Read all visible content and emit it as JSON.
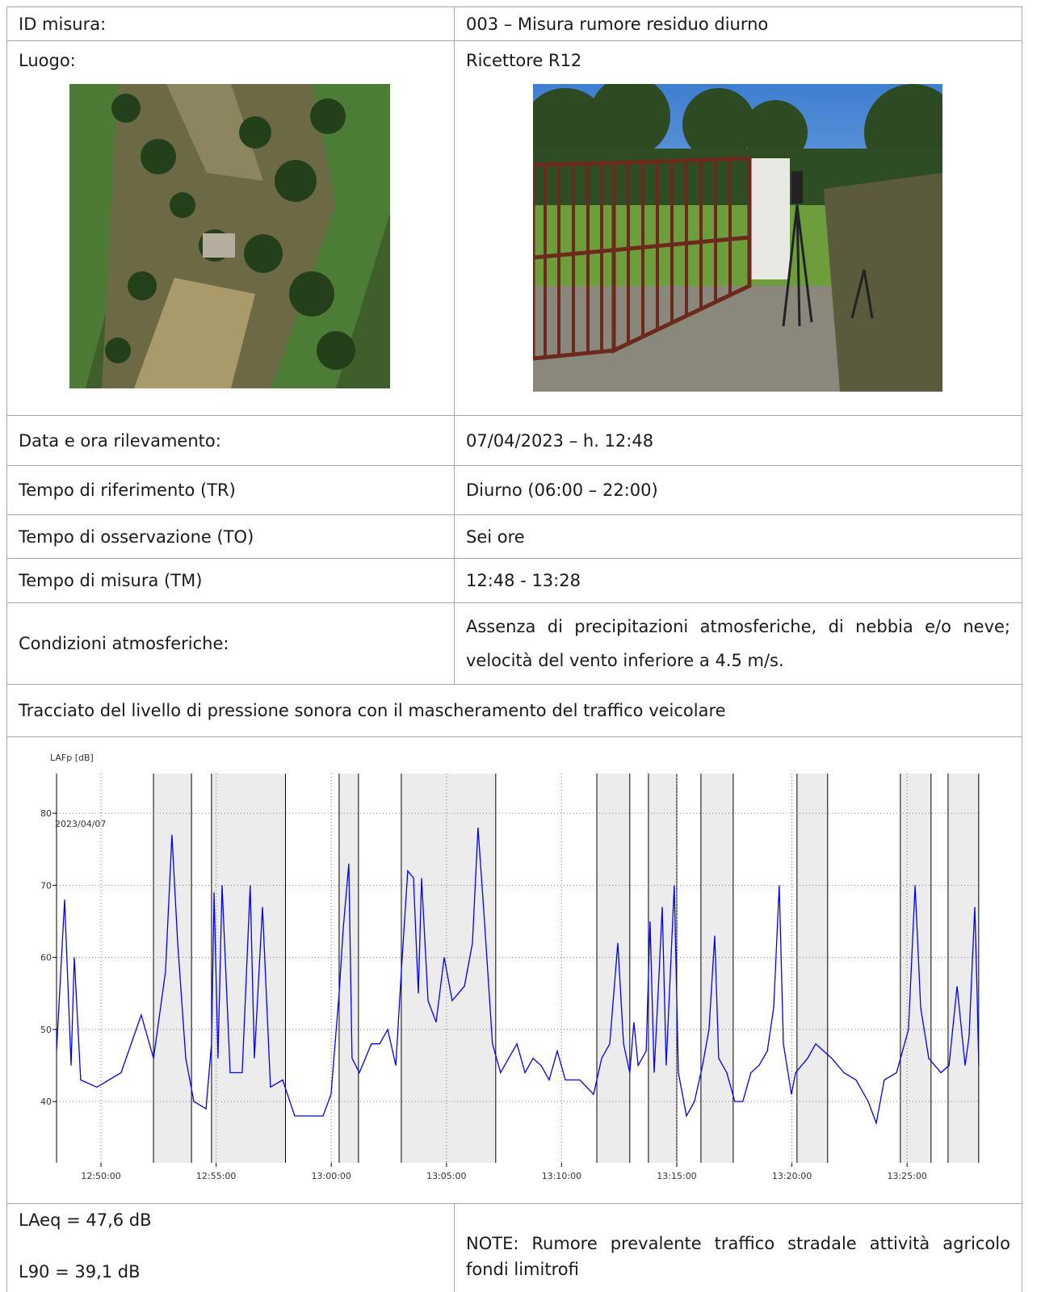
{
  "table": {
    "rows": [
      [
        "ID misura:",
        "003 – Misura rumore residuo diurno"
      ],
      [
        "Luogo:",
        "Ricettore R12"
      ],
      [
        "Data e ora rilevamento:",
        "07/04/2023 – h. 12:48"
      ],
      [
        "Tempo di riferimento (TR)",
        "Diurno (06:00 – 22:00)"
      ],
      [
        "Tempo di osservazione (TO)",
        "Sei ore"
      ],
      [
        "Tempo di misura (TM)",
        "12:48 - 13:28"
      ],
      [
        "Condizioni atmosferiche:",
        "Assenza di precipitazioni atmosferiche, di nebbia e/o neve; velocità del vento inferiore a 4.5 m/s."
      ]
    ]
  },
  "chart_caption": "Tracciato del livello di pressione sonora con il mascheramento del traffico veicolare",
  "chart_data": {
    "type": "line",
    "y_label": "LAFp [dB]",
    "annotation": "2023/04/07",
    "color": "#0000ff",
    "grid": true,
    "xlim": [
      768.07,
      808.15
    ],
    "ylim": [
      31.5,
      85.5
    ],
    "xticks": [
      {
        "value": 770,
        "label": "12:50:00"
      },
      {
        "value": 775,
        "label": "12:55:00"
      },
      {
        "value": 780,
        "label": "13:00:00"
      },
      {
        "value": 785,
        "label": "13:05:00"
      },
      {
        "value": 790,
        "label": "13:10:00"
      },
      {
        "value": 795,
        "label": "13:15:00"
      },
      {
        "value": 800,
        "label": "13:20:00"
      },
      {
        "value": 805,
        "label": "13:25:00"
      }
    ],
    "yticks": [
      40,
      50,
      60,
      70,
      80
    ],
    "masked_intervals": [
      [
        772.28,
        773.93
      ],
      [
        774.8,
        778.01
      ],
      [
        780.34,
        781.18
      ],
      [
        783.04,
        787.14
      ],
      [
        791.53,
        792.96
      ],
      [
        793.77,
        795.0
      ],
      [
        796.05,
        797.45
      ],
      [
        800.22,
        801.55
      ],
      [
        804.71,
        806.04
      ],
      [
        806.78,
        808.11
      ]
    ],
    "x": [
      768.07,
      768.42,
      768.7,
      768.84,
      769.12,
      769.82,
      770.87,
      771.75,
      772.28,
      772.8,
      773.08,
      773.33,
      773.68,
      774.03,
      774.56,
      774.8,
      774.91,
      775.08,
      775.26,
      775.61,
      776.13,
      776.48,
      776.66,
      777.01,
      777.36,
      777.89,
      778.41,
      779.29,
      779.64,
      779.99,
      780.34,
      780.52,
      780.76,
      780.9,
      781.22,
      781.74,
      782.1,
      782.45,
      782.8,
      783.04,
      783.32,
      783.57,
      783.78,
      783.92,
      784.2,
      784.55,
      784.9,
      785.25,
      785.78,
      786.13,
      786.37,
      786.65,
      787.0,
      787.35,
      787.7,
      788.06,
      788.41,
      788.76,
      789.11,
      789.46,
      789.81,
      790.16,
      790.79,
      791.39,
      791.74,
      792.09,
      792.44,
      792.69,
      792.96,
      793.14,
      793.32,
      793.67,
      793.84,
      794.02,
      794.19,
      794.37,
      794.54,
      794.89,
      795.07,
      795.42,
      795.77,
      796.12,
      796.4,
      796.65,
      796.82,
      797.17,
      797.52,
      797.87,
      798.22,
      798.57,
      798.93,
      799.21,
      799.45,
      799.63,
      799.98,
      800.16,
      800.68,
      801.03,
      801.73,
      802.26,
      802.78,
      803.31,
      803.66,
      804.01,
      804.54,
      805.06,
      805.35,
      805.59,
      805.94,
      806.47,
      806.82,
      807.17,
      807.52,
      807.69,
      807.94,
      808.04,
      808.11
    ],
    "values": [
      47,
      68,
      45,
      60,
      43,
      42,
      44,
      52,
      46,
      58,
      77,
      62,
      46,
      40,
      39,
      48,
      69,
      46,
      70,
      44,
      44,
      70,
      46,
      67,
      42,
      43,
      38,
      38,
      38,
      41,
      55,
      64,
      73,
      46,
      44,
      48,
      48,
      50,
      45,
      58,
      72,
      71,
      55,
      71,
      54,
      51,
      60,
      54,
      56,
      62,
      78,
      65,
      48,
      44,
      46,
      48,
      44,
      46,
      45,
      43,
      47,
      43,
      43,
      41,
      46,
      48,
      62,
      48,
      44,
      51,
      45,
      47,
      65,
      44,
      55,
      67,
      45,
      70,
      44,
      38,
      40,
      45,
      50,
      63,
      46,
      44,
      40,
      40,
      44,
      45,
      47,
      53,
      70,
      48,
      41,
      44,
      46,
      48,
      46,
      44,
      43,
      40,
      37,
      43,
      44,
      50,
      70,
      53,
      46,
      44,
      45,
      56,
      45,
      49,
      67,
      55,
      45
    ]
  },
  "results": [
    "LAeq = 47,6 dB",
    "L90 = 39,1 dB"
  ],
  "note": "NOTE: Rumore prevalente traffico stradale attività agricolo fondi limitrofi"
}
